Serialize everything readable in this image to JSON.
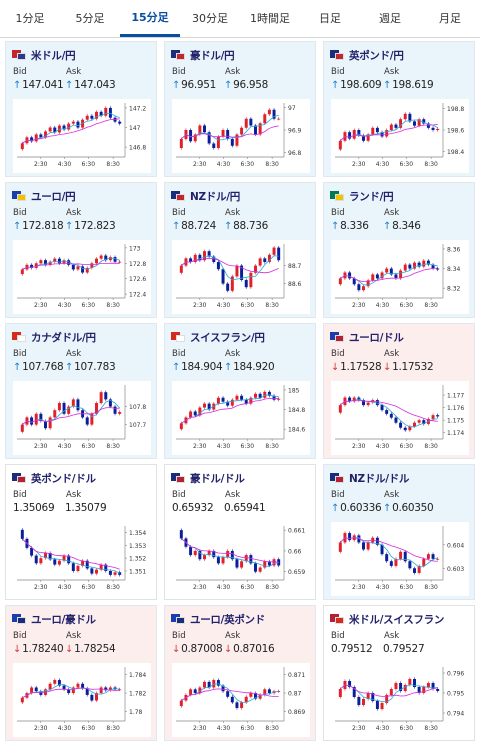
{
  "tabs": [
    {
      "label": "1分足",
      "active": false
    },
    {
      "label": "5分足",
      "active": false
    },
    {
      "label": "15分足",
      "active": true
    },
    {
      "label": "30分足",
      "active": false
    },
    {
      "label": "1時間足",
      "active": false
    },
    {
      "label": "日足",
      "active": false
    },
    {
      "label": "週足",
      "active": false
    },
    {
      "label": "月足",
      "active": false
    }
  ],
  "labels": {
    "bid": "Bid",
    "ask": "Ask"
  },
  "colors": {
    "up_arrow": "#1a7fd1",
    "down_arrow": "#d23a3a",
    "candle_up": "#e0202a",
    "candle_down": "#0a1e9a",
    "ma_short": "#2aa8d8",
    "ma_long": "#d62be0"
  },
  "cards": [
    {
      "pair": "米ドル/円",
      "flag": [
        "#c1272d",
        "#2a3b8f"
      ],
      "trend": "up",
      "bid": "147.041",
      "ask": "147.043",
      "chart_data": {
        "type": "candlestick",
        "x_ticks": [
          "2:30",
          "4:30",
          "6:30",
          "8:30"
        ],
        "y_ticks": [
          "147.2",
          "147",
          "146.8"
        ],
        "ylim": [
          146.7,
          147.25
        ],
        "close": [
          146.84,
          146.9,
          146.86,
          146.93,
          146.9,
          146.96,
          147.0,
          146.95,
          147.02,
          146.98,
          147.04,
          147.06,
          147.0,
          147.08,
          147.12,
          147.09,
          147.16,
          147.12,
          147.2,
          147.1,
          147.06,
          147.04
        ]
      }
    },
    {
      "pair": "豪ドル/円",
      "flag": [
        "#1a2d7a",
        "#c1272d"
      ],
      "trend": "up",
      "bid": "96.951",
      "ask": "96.958",
      "chart_data": {
        "type": "candlestick",
        "x_ticks": [
          "2:30",
          "4:30",
          "6:30",
          "8:30"
        ],
        "y_ticks": [
          "97",
          "96.9",
          "96.8"
        ],
        "ylim": [
          96.78,
          97.02
        ],
        "close": [
          96.86,
          96.9,
          96.85,
          96.88,
          96.92,
          96.89,
          96.84,
          96.82,
          96.87,
          96.9,
          96.86,
          96.83,
          96.88,
          96.91,
          96.95,
          96.92,
          96.88,
          96.93,
          96.97,
          96.99,
          96.95,
          96.95
        ]
      }
    },
    {
      "pair": "英ポンド/円",
      "flag": [
        "#1a2d7a",
        "#c1272d"
      ],
      "trend": "up",
      "bid": "198.609",
      "ask": "198.619",
      "chart_data": {
        "type": "candlestick",
        "x_ticks": [
          "2:30",
          "4:30",
          "6:30",
          "8:30"
        ],
        "y_ticks": [
          "198.8",
          "198.6",
          "198.4"
        ],
        "ylim": [
          198.35,
          198.85
        ],
        "close": [
          198.5,
          198.58,
          198.52,
          198.6,
          198.55,
          198.5,
          198.56,
          198.62,
          198.58,
          198.54,
          198.6,
          198.65,
          198.62,
          198.7,
          198.75,
          198.68,
          198.64,
          198.7,
          198.66,
          198.62,
          198.6,
          198.61
        ]
      }
    },
    {
      "pair": "ユーロ/円",
      "flag": [
        "#1a3fa8",
        "#f2c200"
      ],
      "trend": "up",
      "bid": "172.818",
      "ask": "172.823",
      "chart_data": {
        "type": "candlestick",
        "x_ticks": [
          "2:30",
          "4:30",
          "6:30",
          "8:30"
        ],
        "y_ticks": [
          "173",
          "172.8",
          "172.6",
          "172.4"
        ],
        "ylim": [
          172.35,
          173.05
        ],
        "close": [
          172.72,
          172.78,
          172.74,
          172.8,
          172.84,
          172.78,
          172.82,
          172.86,
          172.8,
          172.84,
          172.78,
          172.72,
          172.76,
          172.68,
          172.74,
          172.8,
          172.86,
          172.9,
          172.84,
          172.88,
          172.82,
          172.82
        ]
      }
    },
    {
      "pair": "NZドル/円",
      "flag": [
        "#1a2d7a",
        "#c1272d"
      ],
      "trend": "up",
      "bid": "88.724",
      "ask": "88.736",
      "chart_data": {
        "type": "candlestick",
        "x_ticks": [
          "2:30",
          "4:30",
          "6:30",
          "8:30"
        ],
        "y_ticks": [
          "88.7",
          "88.6"
        ],
        "ylim": [
          88.52,
          88.82
        ],
        "close": [
          88.7,
          88.74,
          88.72,
          88.76,
          88.73,
          88.78,
          88.75,
          88.72,
          88.68,
          88.6,
          88.56,
          88.64,
          88.7,
          88.62,
          88.58,
          88.66,
          88.7,
          88.74,
          88.72,
          88.76,
          88.8,
          88.73
        ]
      }
    },
    {
      "pair": "ランド/円",
      "flag": [
        "#007a4d",
        "#f2c200"
      ],
      "trend": "up",
      "bid": "8.336",
      "ask": "8.346",
      "chart_data": {
        "type": "candlestick",
        "x_ticks": [
          "2:30",
          "4:30",
          "6:30",
          "8:30"
        ],
        "y_ticks": [
          "8.36",
          "8.34",
          "8.32"
        ],
        "ylim": [
          8.31,
          8.365
        ],
        "close": [
          8.33,
          8.336,
          8.33,
          8.324,
          8.318,
          8.322,
          8.328,
          8.334,
          8.33,
          8.336,
          8.34,
          8.334,
          8.33,
          8.338,
          8.344,
          8.34,
          8.346,
          8.342,
          8.348,
          8.344,
          8.34,
          8.339
        ]
      }
    },
    {
      "pair": "カナダドル/円",
      "flag": [
        "#d52b1e",
        "#ffffff"
      ],
      "trend": "up",
      "bid": "107.768",
      "ask": "107.783",
      "chart_data": {
        "type": "candlestick",
        "x_ticks": [
          "2:30",
          "4:30",
          "6:30",
          "8:30"
        ],
        "y_ticks": [
          "107.8",
          "107.7"
        ],
        "ylim": [
          107.62,
          107.92
        ],
        "close": [
          107.7,
          107.74,
          107.7,
          107.76,
          107.72,
          107.68,
          107.74,
          107.78,
          107.82,
          107.76,
          107.8,
          107.84,
          107.78,
          107.74,
          107.7,
          107.76,
          107.82,
          107.88,
          107.84,
          107.8,
          107.76,
          107.77
        ]
      }
    },
    {
      "pair": "スイスフラン/円",
      "flag": [
        "#d52b1e",
        "#ffffff"
      ],
      "trend": "up",
      "bid": "184.904",
      "ask": "184.920",
      "chart_data": {
        "type": "candlestick",
        "x_ticks": [
          "2:30",
          "4:30",
          "6:30",
          "8:30"
        ],
        "y_ticks": [
          "185",
          "184.8",
          "184.6"
        ],
        "ylim": [
          184.5,
          185.05
        ],
        "close": [
          184.66,
          184.72,
          184.78,
          184.74,
          184.82,
          184.86,
          184.8,
          184.86,
          184.92,
          184.88,
          184.84,
          184.9,
          184.94,
          184.9,
          184.86,
          184.92,
          184.96,
          184.92,
          184.98,
          184.94,
          184.9,
          184.91
        ]
      }
    },
    {
      "pair": "ユーロ/ドル",
      "flag": [
        "#1a3fa8",
        "#b22234"
      ],
      "trend": "down",
      "bid": "1.17528",
      "ask": "1.17532",
      "chart_data": {
        "type": "candlestick",
        "x_ticks": [
          "2:30",
          "4:30",
          "6:30",
          "8:30"
        ],
        "y_ticks": [
          "1.177",
          "1.176",
          "1.175",
          "1.174"
        ],
        "ylim": [
          1.1735,
          1.1778
        ],
        "close": [
          1.1762,
          1.1768,
          1.1765,
          1.1768,
          1.1766,
          1.1762,
          1.1764,
          1.1766,
          1.1762,
          1.1758,
          1.1755,
          1.1752,
          1.1748,
          1.1744,
          1.1742,
          1.1745,
          1.1748,
          1.175,
          1.1747,
          1.1751,
          1.1754,
          1.1753
        ]
      }
    },
    {
      "pair": "英ポンド/ドル",
      "flag": [
        "#1a2d7a",
        "#b22234"
      ],
      "trend": "flat",
      "bid": "1.35069",
      "ask": "1.35079",
      "chart_data": {
        "type": "candlestick",
        "x_ticks": [
          "2:30",
          "4:30",
          "6:30",
          "8:30"
        ],
        "y_ticks": [
          "1.354",
          "1.353",
          "1.352",
          "1.351"
        ],
        "ylim": [
          1.3503,
          1.3545
        ],
        "close": [
          1.3535,
          1.3528,
          1.3522,
          1.3516,
          1.352,
          1.3524,
          1.3519,
          1.3515,
          1.3518,
          1.3522,
          1.3516,
          1.351,
          1.3514,
          1.3518,
          1.3512,
          1.3508,
          1.3511,
          1.3515,
          1.351,
          1.3507,
          1.3509,
          1.3507
        ]
      }
    },
    {
      "pair": "豪ドル/ドル",
      "flag": [
        "#1a2d7a",
        "#b22234"
      ],
      "trend": "flat",
      "bid": "0.65932",
      "ask": "0.65941",
      "chart_data": {
        "type": "candlestick",
        "x_ticks": [
          "2:30",
          "4:30",
          "6:30",
          "8:30"
        ],
        "y_ticks": [
          "0.661",
          "0.66",
          "0.659"
        ],
        "ylim": [
          0.6586,
          0.6612
        ],
        "close": [
          0.6606,
          0.6602,
          0.6598,
          0.66,
          0.6596,
          0.6598,
          0.66,
          0.6597,
          0.6594,
          0.6597,
          0.66,
          0.6596,
          0.6592,
          0.6595,
          0.6598,
          0.6594,
          0.659,
          0.6592,
          0.6595,
          0.6593,
          0.6596,
          0.6593
        ]
      }
    },
    {
      "pair": "NZドル/ドル",
      "flag": [
        "#1a2d7a",
        "#b22234"
      ],
      "trend": "up",
      "bid": "0.60336",
      "ask": "0.60350",
      "chart_data": {
        "type": "candlestick",
        "x_ticks": [
          "2:30",
          "4:30",
          "6:30",
          "8:30"
        ],
        "y_ticks": [
          "0.604",
          "0.603"
        ],
        "ylim": [
          0.6025,
          0.6048
        ],
        "close": [
          0.6041,
          0.6045,
          0.6042,
          0.6044,
          0.6041,
          0.6038,
          0.6041,
          0.6043,
          0.604,
          0.6036,
          0.6033,
          0.6031,
          0.6034,
          0.6037,
          0.6033,
          0.603,
          0.6028,
          0.6031,
          0.6034,
          0.6036,
          0.6034,
          0.6034
        ]
      }
    },
    {
      "pair": "ユーロ/豪ドル",
      "flag": [
        "#1a3fa8",
        "#1a2d7a"
      ],
      "trend": "down",
      "bid": "1.78240",
      "ask": "1.78254",
      "chart_data": {
        "type": "candlestick",
        "x_ticks": [
          "2:30",
          "4:30",
          "6:30",
          "8:30"
        ],
        "y_ticks": [
          "1.784",
          "1.782",
          "1.78"
        ],
        "ylim": [
          1.779,
          1.7848
        ],
        "close": [
          1.7815,
          1.782,
          1.7826,
          1.7822,
          1.7818,
          1.7824,
          1.783,
          1.7834,
          1.7828,
          1.7824,
          1.782,
          1.7826,
          1.783,
          1.7825,
          1.7818,
          1.7812,
          1.782,
          1.7826,
          1.7823,
          1.7826,
          1.7824,
          1.7824
        ]
      }
    },
    {
      "pair": "ユーロ/英ポンド",
      "flag": [
        "#1a3fa8",
        "#1a2d7a"
      ],
      "trend": "down",
      "bid": "0.87008",
      "ask": "0.87016",
      "chart_data": {
        "type": "candlestick",
        "x_ticks": [
          "2:30",
          "4:30",
          "6:30",
          "8:30"
        ],
        "y_ticks": [
          "0.871",
          "0.87",
          "0.869"
        ],
        "ylim": [
          0.8685,
          0.8714
        ],
        "close": [
          0.8696,
          0.8699,
          0.8702,
          0.87,
          0.8703,
          0.8706,
          0.8703,
          0.8707,
          0.8704,
          0.8701,
          0.8698,
          0.8695,
          0.8692,
          0.8695,
          0.8698,
          0.87,
          0.8697,
          0.8699,
          0.8702,
          0.87,
          0.8701,
          0.8701
        ]
      }
    },
    {
      "pair": "米ドル/スイスフラン",
      "flag": [
        "#b22234",
        "#d52b1e"
      ],
      "trend": "flat",
      "bid": "0.79512",
      "ask": "0.79527",
      "chart_data": {
        "type": "candlestick",
        "x_ticks": [
          "2:30",
          "4:30",
          "6:30",
          "8:30"
        ],
        "y_ticks": [
          "0.796",
          "0.795",
          "0.794"
        ],
        "ylim": [
          0.7936,
          0.7963
        ],
        "close": [
          0.7952,
          0.7956,
          0.7953,
          0.7948,
          0.7944,
          0.7947,
          0.795,
          0.7946,
          0.7942,
          0.7945,
          0.7949,
          0.7952,
          0.7955,
          0.7951,
          0.7954,
          0.7957,
          0.7953,
          0.795,
          0.7953,
          0.7955,
          0.7952,
          0.7951
        ]
      }
    }
  ]
}
